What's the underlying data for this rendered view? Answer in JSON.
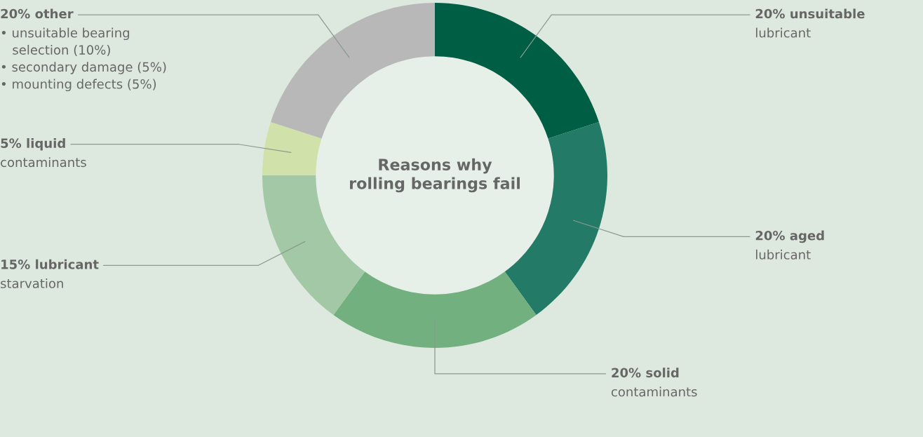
{
  "chart_data": {
    "type": "donut",
    "title": "Reasons why\nrolling bearings fail",
    "categories": [
      "20% unsuitable\nlubricant",
      "20% aged\nlubricant",
      "20% solid\ncontaminants",
      "15% lubricant\nstarvation",
      "5% liquid\ncontaminants",
      "20% other\n• unsuitable bearing\n   selection (10%)\n• secondary damage (5%)\n• mounting defects (5%)"
    ],
    "values": [
      20,
      20,
      20,
      15,
      5,
      20
    ],
    "colors": [
      "#005e45",
      "#237a66",
      "#72b07f",
      "#a3c8a6",
      "#d0e2a9",
      "#b8b8b8"
    ],
    "legend": false
  }
}
